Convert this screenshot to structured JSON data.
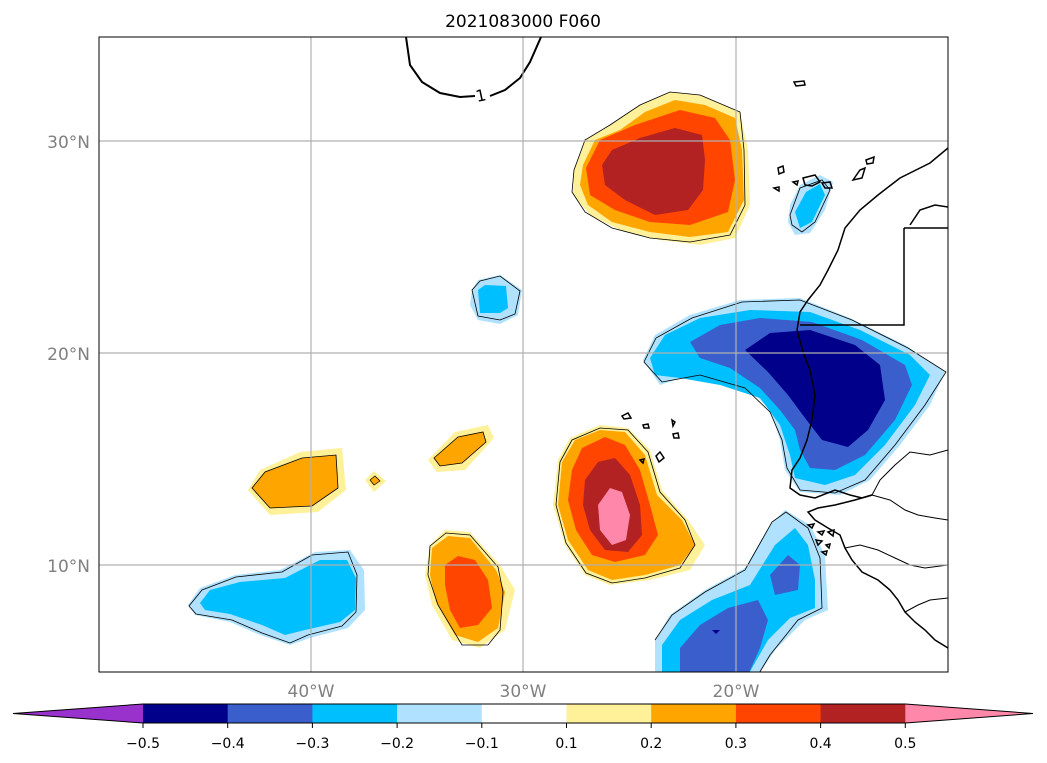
{
  "title": "2021083000 F060",
  "map": {
    "lat_labels": [
      "30°N",
      "20°N",
      "10°N"
    ],
    "lon_labels": [
      "40°W",
      "30°W",
      "20°W"
    ],
    "contour_label": "1"
  },
  "colorbar": {
    "ticks": [
      "−0.5",
      "−0.4",
      "−0.3",
      "−0.2",
      "−0.1",
      "0.1",
      "0.2",
      "0.3",
      "0.4",
      "0.5"
    ],
    "colors": [
      "#9932cc",
      "#00008b",
      "#3a5fcd",
      "#00bfff",
      "#b0e2ff",
      "#ffffff",
      "#fff09a",
      "#ffa500",
      "#ff4500",
      "#b22222",
      "#ff88aa"
    ],
    "levels": [
      -0.5,
      -0.4,
      -0.3,
      -0.2,
      -0.1,
      0.1,
      0.2,
      0.3,
      0.4,
      0.5
    ]
  }
}
